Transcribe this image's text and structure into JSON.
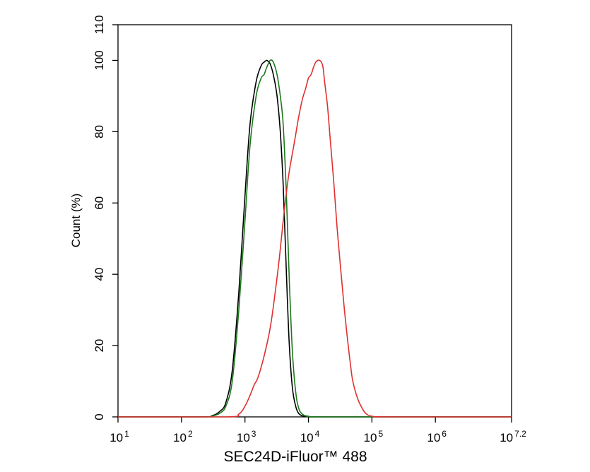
{
  "chart_data": {
    "type": "line",
    "title": "",
    "xlabel": "SEC24D-iFluor™ 488",
    "ylabel": "Count  (%)",
    "x_scale": "log10",
    "xlim": [
      10,
      15848932
    ],
    "ylim": [
      0,
      110
    ],
    "grid": false,
    "legend": "none",
    "x_ticks": [
      {
        "base": "10",
        "exp": "1"
      },
      {
        "base": "10",
        "exp": "2"
      },
      {
        "base": "10",
        "exp": "3"
      },
      {
        "base": "10",
        "exp": "4"
      },
      {
        "base": "10",
        "exp": "5"
      },
      {
        "base": "10",
        "exp": "6"
      },
      {
        "base": "10",
        "exp": "7.2"
      }
    ],
    "x_tick_values": [
      10,
      100,
      1000,
      10000,
      100000,
      1000000,
      15848932
    ],
    "y_ticks": [
      "0",
      "20",
      "40",
      "60",
      "80",
      "100",
      "110"
    ],
    "y_tick_values": [
      0,
      20,
      40,
      60,
      80,
      100,
      110
    ],
    "series": [
      {
        "color": "#000000",
        "x": [
          10,
          200,
          300,
          400,
          500,
          630,
          800,
          1000,
          1200,
          1500,
          1800,
          2000,
          2200,
          2300,
          2500,
          2800,
          3200,
          3600,
          4000,
          4500,
          5000,
          5600,
          6300,
          7000,
          8000,
          10000,
          20000,
          15848932
        ],
        "y": [
          0,
          0,
          0.3,
          1.5,
          4,
          13,
          35,
          62,
          82,
          94,
          98.5,
          99.5,
          100,
          99.8,
          99,
          96,
          90,
          80,
          65,
          40,
          20,
          8,
          3,
          1,
          0.3,
          0,
          0,
          0
        ]
      },
      {
        "color": "#1a7a1a",
        "x": [
          10,
          200,
          300,
          400,
          500,
          630,
          800,
          1000,
          1200,
          1500,
          1800,
          2000,
          2200,
          2500,
          2800,
          3200,
          3600,
          4000,
          4500,
          5000,
          5600,
          6300,
          7000,
          8000,
          10000,
          20000,
          15848932
        ],
        "y": [
          0,
          0,
          0.2,
          1,
          3,
          10,
          30,
          55,
          76,
          90,
          95,
          96,
          98,
          100,
          99.5,
          96,
          90,
          82,
          62,
          38,
          18,
          7,
          2.5,
          0.8,
          0.2,
          0,
          0
        ]
      },
      {
        "color": "#e03030",
        "x": [
          10,
          500,
          800,
          1000,
          1200,
          1400,
          1600,
          2000,
          2500,
          3000,
          3500,
          4000,
          4500,
          5000,
          6000,
          7000,
          8000,
          9000,
          10000,
          11000,
          12000,
          13000,
          14000,
          15000,
          16000,
          17000,
          18000,
          20000,
          22000,
          25000,
          28000,
          32000,
          36000,
          40000,
          45000,
          50000,
          60000,
          70000,
          80000,
          100000,
          200000,
          15848932
        ],
        "y": [
          0,
          0,
          0.8,
          3,
          6,
          9,
          11,
          17,
          25,
          35,
          45,
          55,
          63,
          69,
          77,
          84,
          89,
          92,
          95,
          96,
          98,
          99.5,
          100,
          100,
          99.5,
          98,
          94,
          87,
          78,
          66,
          54,
          42,
          32,
          24,
          16,
          10,
          5,
          2.5,
          1,
          0.2,
          0,
          0
        ]
      }
    ]
  }
}
